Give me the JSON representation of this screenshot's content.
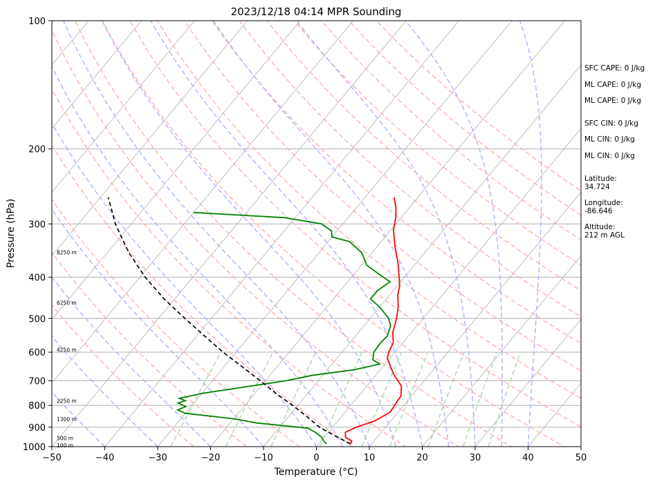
{
  "chart_data": {
    "type": "line",
    "title": "2023/12/18 04:14 MPR Sounding",
    "xlabel": "Temperature (°C)",
    "ylabel": "Pressure (hPa)",
    "xlim": [
      -50,
      50
    ],
    "ylim": [
      1000,
      100
    ],
    "y_scale": "log",
    "x_ticks": [
      -50,
      -40,
      -30,
      -20,
      -10,
      0,
      10,
      20,
      30,
      40,
      50
    ],
    "y_ticks": [
      1000,
      900,
      800,
      700,
      600,
      500,
      400,
      300,
      200,
      100
    ],
    "x_tick_labels": [
      "−50",
      "−40",
      "−30",
      "−20",
      "−10",
      "0",
      "10",
      "20",
      "30",
      "40",
      "50"
    ],
    "y_tick_labels": [
      "1000",
      "900",
      "800",
      "700",
      "600",
      "500",
      "400",
      "300",
      "200",
      "100"
    ],
    "grid": true,
    "series": [
      {
        "role": "temperature",
        "color": "#ff0000",
        "points": [
          {
            "p": 985,
            "t": 6.0
          },
          {
            "p": 970,
            "t": 5.8
          },
          {
            "p": 950,
            "t": 4.0
          },
          {
            "p": 925,
            "t": 3.2
          },
          {
            "p": 900,
            "t": 4.5
          },
          {
            "p": 870,
            "t": 7.0
          },
          {
            "p": 830,
            "t": 8.5
          },
          {
            "p": 800,
            "t": 8.3
          },
          {
            "p": 760,
            "t": 8.0
          },
          {
            "p": 720,
            "t": 6.5
          },
          {
            "p": 680,
            "t": 3.5
          },
          {
            "p": 650,
            "t": 1.5
          },
          {
            "p": 620,
            "t": -0.5
          },
          {
            "p": 600,
            "t": -1.2
          },
          {
            "p": 570,
            "t": -1.8
          },
          {
            "p": 540,
            "t": -3.5
          },
          {
            "p": 500,
            "t": -5.0
          },
          {
            "p": 470,
            "t": -6.5
          },
          {
            "p": 440,
            "t": -8.5
          },
          {
            "p": 420,
            "t": -9.5
          },
          {
            "p": 400,
            "t": -11.0
          },
          {
            "p": 370,
            "t": -13.5
          },
          {
            "p": 340,
            "t": -16.5
          },
          {
            "p": 310,
            "t": -19.5
          },
          {
            "p": 290,
            "t": -21.0
          },
          {
            "p": 275,
            "t": -22.5
          },
          {
            "p": 260,
            "t": -24.5
          }
        ]
      },
      {
        "role": "dewpoint",
        "color": "#008000",
        "points": [
          {
            "p": 985,
            "t": 1.5
          },
          {
            "p": 970,
            "t": 0.5
          },
          {
            "p": 950,
            "t": -0.5
          },
          {
            "p": 925,
            "t": -2.5
          },
          {
            "p": 905,
            "t": -4.5
          },
          {
            "p": 880,
            "t": -15.0
          },
          {
            "p": 860,
            "t": -20.0
          },
          {
            "p": 835,
            "t": -30.0
          },
          {
            "p": 820,
            "t": -32.0
          },
          {
            "p": 805,
            "t": -31.0
          },
          {
            "p": 790,
            "t": -33.0
          },
          {
            "p": 780,
            "t": -32.0
          },
          {
            "p": 770,
            "t": -33.5
          },
          {
            "p": 750,
            "t": -30.0
          },
          {
            "p": 700,
            "t": -16.0
          },
          {
            "p": 680,
            "t": -12.0
          },
          {
            "p": 660,
            "t": -5.0
          },
          {
            "p": 640,
            "t": -1.0
          },
          {
            "p": 625,
            "t": -3.0
          },
          {
            "p": 600,
            "t": -4.0
          },
          {
            "p": 575,
            "t": -4.2
          },
          {
            "p": 550,
            "t": -4.0
          },
          {
            "p": 520,
            "t": -5.0
          },
          {
            "p": 500,
            "t": -6.5
          },
          {
            "p": 470,
            "t": -10.0
          },
          {
            "p": 450,
            "t": -13.0
          },
          {
            "p": 430,
            "t": -13.0
          },
          {
            "p": 410,
            "t": -12.0
          },
          {
            "p": 395,
            "t": -15.0
          },
          {
            "p": 375,
            "t": -19.0
          },
          {
            "p": 350,
            "t": -22.0
          },
          {
            "p": 330,
            "t": -26.0
          },
          {
            "p": 322,
            "t": -30.0
          },
          {
            "p": 312,
            "t": -31.0
          },
          {
            "p": 300,
            "t": -34.0
          },
          {
            "p": 290,
            "t": -42.0
          },
          {
            "p": 282,
            "t": -60.0
          }
        ]
      },
      {
        "role": "parcel",
        "color": "#000000",
        "style": "dashed",
        "points": [
          {
            "p": 985,
            "t": 6.0
          },
          {
            "p": 950,
            "t": 2.5
          },
          {
            "p": 900,
            "t": -2.5
          },
          {
            "p": 850,
            "t": -6.5
          },
          {
            "p": 800,
            "t": -11.0
          },
          {
            "p": 750,
            "t": -16.0
          },
          {
            "p": 700,
            "t": -21.0
          },
          {
            "p": 650,
            "t": -26.5
          },
          {
            "p": 600,
            "t": -32.5
          },
          {
            "p": 550,
            "t": -38.5
          },
          {
            "p": 500,
            "t": -45.0
          },
          {
            "p": 450,
            "t": -52.0
          },
          {
            "p": 400,
            "t": -59.0
          },
          {
            "p": 350,
            "t": -66.0
          },
          {
            "p": 300,
            "t": -73.0
          },
          {
            "p": 260,
            "t": -78.5
          }
        ]
      }
    ],
    "altitude_labels": [
      {
        "p": 992,
        "label": "100 m"
      },
      {
        "p": 955,
        "label": "500 m"
      },
      {
        "p": 862,
        "label": "1300 m"
      },
      {
        "p": 780,
        "label": "2250 m"
      },
      {
        "p": 592,
        "label": "4250 m"
      },
      {
        "p": 459,
        "label": "6250 m"
      },
      {
        "p": 350,
        "label": "8250 m"
      }
    ],
    "side_panel": [
      "SFC CAPE: 0 J/kg",
      "ML CAPE: 0 J/kg",
      "ML CAPE: 0 J/kg",
      "SFC CIN: 0 J/kg",
      "ML CIN: 0 J/kg",
      "ML CIN: 0 J/kg",
      "Latitude:",
      "34.724",
      "Longitude:",
      "-86.646",
      "Altitude:",
      "212 m AGL"
    ],
    "reference_lines": {
      "isotherm_color": "#b0b0b0",
      "dry_adiabat_color": "#ffb0b0",
      "moist_adiabat_color": "#b0b0ff",
      "mixing_ratio_color": "#a8d8a8",
      "dry_adiabats_theta_k": [
        250,
        260,
        270,
        280,
        290,
        300,
        310,
        320,
        330,
        340,
        350,
        360,
        370,
        380,
        390,
        400,
        410,
        420
      ],
      "moist_adiabats_surface_c": [
        -40,
        -30,
        -20,
        -10,
        0,
        5,
        10,
        15,
        20,
        25,
        30,
        35,
        40
      ],
      "mixing_ratios_gkg": [
        0.4,
        1,
        2,
        4,
        7,
        10,
        16,
        24,
        32
      ]
    }
  }
}
